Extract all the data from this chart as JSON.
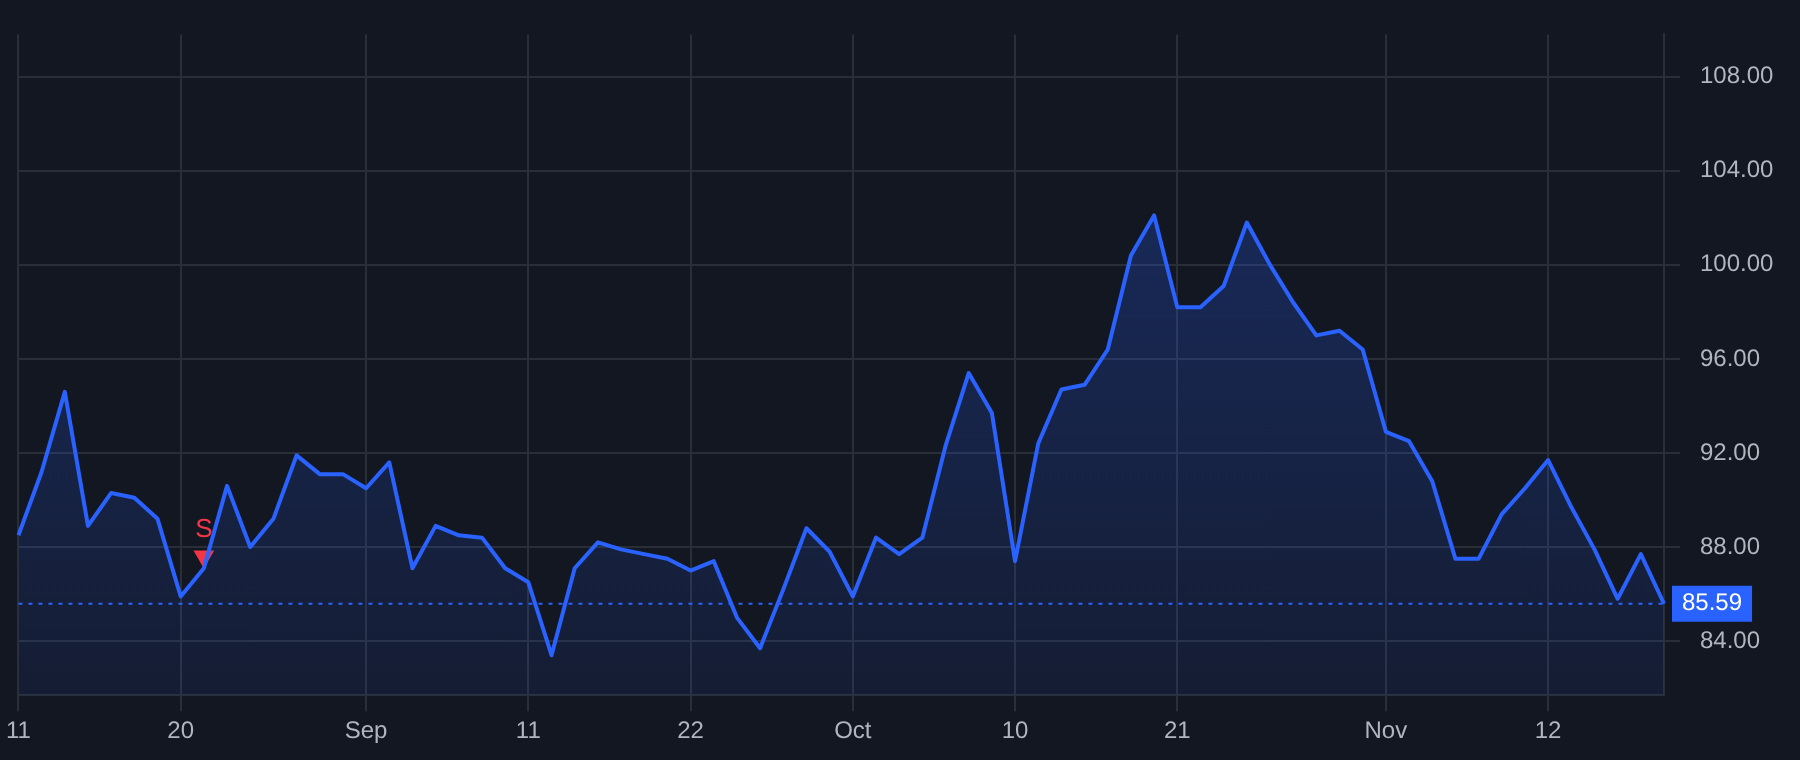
{
  "chart_data": {
    "type": "area",
    "categories": [
      "11",
      null,
      null,
      null,
      null,
      null,
      null,
      "20",
      null,
      null,
      null,
      null,
      null,
      null,
      null,
      "Sep",
      null,
      null,
      null,
      null,
      null,
      null,
      "11",
      null,
      null,
      null,
      null,
      null,
      null,
      "22",
      null,
      null,
      null,
      null,
      null,
      null,
      "Oct",
      null,
      null,
      null,
      null,
      null,
      null,
      "10",
      null,
      null,
      null,
      null,
      null,
      null,
      "21",
      null,
      null,
      null,
      null,
      null,
      null,
      null,
      null,
      "Nov",
      null,
      null,
      null,
      null,
      null,
      null,
      "12",
      null,
      null,
      null,
      null,
      null
    ],
    "series": [
      {
        "color": "#2962ff",
        "marker": "none",
        "line_style": "solid",
        "values": [
          88.5,
          91.2,
          94.6,
          88.9,
          90.3,
          90.1,
          89.2,
          85.9,
          87.1,
          90.6,
          88.0,
          89.2,
          91.9,
          91.1,
          91.1,
          90.5,
          91.6,
          87.1,
          88.9,
          88.5,
          88.4,
          87.1,
          86.5,
          83.4,
          87.1,
          88.2,
          87.9,
          87.7,
          87.5,
          87.0,
          87.4,
          85.0,
          83.7,
          86.2,
          88.8,
          87.8,
          85.9,
          88.4,
          87.7,
          88.4,
          92.3,
          95.4,
          93.7,
          87.4,
          92.4,
          94.7,
          94.9,
          96.4,
          100.4,
          102.1,
          98.2,
          98.2,
          99.1,
          101.8,
          100.0,
          98.4,
          97.0,
          97.2,
          96.4,
          92.9,
          92.5,
          90.8,
          87.5,
          87.5,
          89.4,
          90.5,
          91.7,
          89.7,
          87.9,
          85.8,
          87.7,
          85.59
        ]
      },
      {
        "name": "S",
        "type": "scatter",
        "color": "#f23645",
        "marker": "triangle",
        "values": [
          null,
          null,
          null,
          null,
          null,
          null,
          null,
          null,
          87.6,
          null,
          null,
          null,
          null,
          null,
          null,
          null,
          null,
          null,
          null,
          null,
          null,
          null,
          null,
          null,
          null,
          null,
          null,
          null,
          null,
          null,
          null,
          null,
          null,
          null,
          null,
          null,
          null,
          null,
          null,
          null,
          null,
          null,
          null,
          null,
          null,
          null,
          null,
          null,
          null,
          null,
          null,
          null,
          null,
          null,
          null,
          null,
          null,
          null,
          null,
          null,
          null,
          null,
          null,
          null,
          null,
          null,
          null,
          null,
          null,
          null,
          null,
          null
        ]
      }
    ],
    "ylim": [
      81.7,
      109.8
    ],
    "yticks": [
      {
        "value": 84,
        "label": "84.00"
      },
      {
        "value": 88,
        "label": "88.00"
      },
      {
        "value": 92,
        "label": "92.00"
      },
      {
        "value": 96,
        "label": "96.00"
      },
      {
        "value": 100,
        "label": "100.00"
      },
      {
        "value": 104,
        "label": "104.00"
      },
      {
        "value": 108,
        "label": "108.00"
      }
    ],
    "ref_lines": [
      {
        "axis": "y",
        "value": 85.59,
        "label": "85.59",
        "color": "#2962ff",
        "line_style": "dotted"
      }
    ],
    "grid": true,
    "legend": false
  }
}
